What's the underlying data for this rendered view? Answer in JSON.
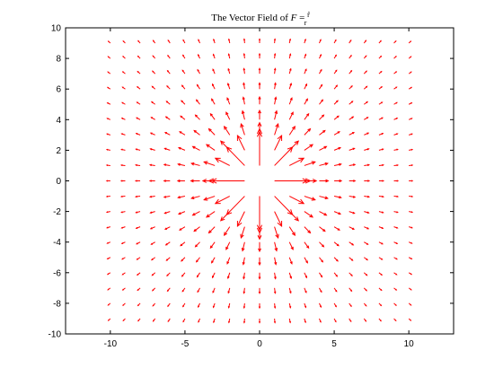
{
  "chart_data": {
    "type": "quiver",
    "title": {
      "prefix": "The Vector Field of ",
      "vector_symbol": "F",
      "equals": " = ",
      "fraction_numerator": "r̂",
      "fraction_denominator": "r"
    },
    "xlabel": "",
    "ylabel": "",
    "xlim": [
      -13,
      13
    ],
    "ylim": [
      -10,
      10
    ],
    "xticks": [
      -10,
      -5,
      0,
      5,
      10
    ],
    "yticks": [
      -10,
      -8,
      -6,
      -4,
      -2,
      0,
      2,
      4,
      6,
      8,
      10
    ],
    "grid": false,
    "legend": "none",
    "color": "#ff0000",
    "field": {
      "expression": "F = r_hat / r",
      "x_range": [
        -10,
        10
      ],
      "y_range": [
        -9,
        9
      ],
      "step": 1,
      "singularity_excluded": [
        0,
        0
      ],
      "arrow_scale": 2.4
    }
  }
}
